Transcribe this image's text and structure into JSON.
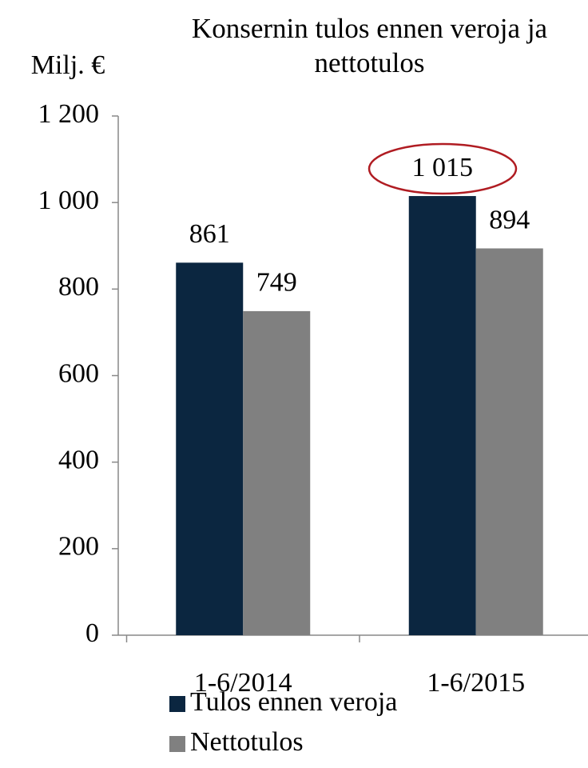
{
  "chart_data": {
    "type": "bar",
    "title": "Konsernin tulos ennen veroja ja nettotulos",
    "y_label": "Milj. €",
    "categories": [
      "1-6/2014",
      "1-6/2015"
    ],
    "series": [
      {
        "name": "Tulos ennen veroja",
        "color": "#0b2640",
        "values": [
          861,
          1015
        ],
        "value_labels": [
          "861",
          "1 015"
        ]
      },
      {
        "name": "Nettotulos",
        "color": "#808080",
        "values": [
          749,
          894
        ]
      }
    ],
    "ylim": [
      0,
      1200
    ],
    "yticks": [
      0,
      200,
      400,
      600,
      800,
      {
        "value": 1000,
        "label": "1 000"
      },
      {
        "value": 1200,
        "label": "1 200"
      }
    ],
    "grid": false
  }
}
